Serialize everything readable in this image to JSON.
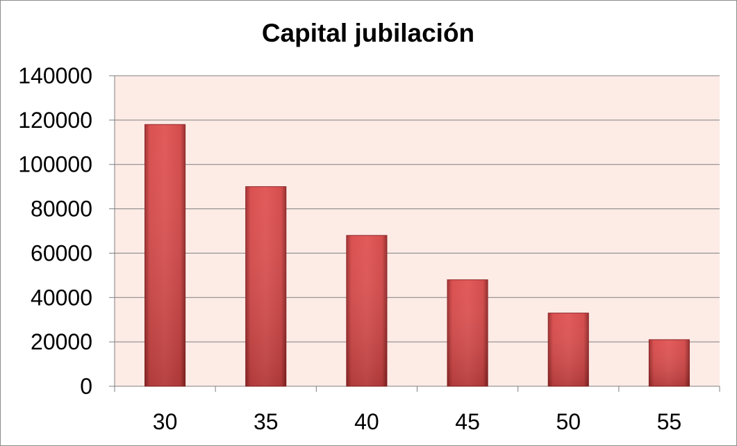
{
  "chart_data": {
    "type": "bar",
    "title": "Capital jubilación",
    "xlabel": "",
    "ylabel": "",
    "categories": [
      "30",
      "35",
      "40",
      "45",
      "50",
      "55"
    ],
    "values": [
      118000,
      90000,
      68000,
      48000,
      33000,
      21000
    ],
    "ylim": [
      0,
      140000
    ],
    "yticks": [
      "0",
      "20000",
      "40000",
      "60000",
      "80000",
      "100000",
      "120000",
      "140000"
    ],
    "grid": true,
    "legend": "none",
    "colors": {
      "bar": "#d84848",
      "bar_dark": "#a32c2c",
      "bar_light": "#e86060",
      "plot_bg": "#fdebe6",
      "grid": "#7f7f7f",
      "axis": "#7f7f7f"
    }
  }
}
